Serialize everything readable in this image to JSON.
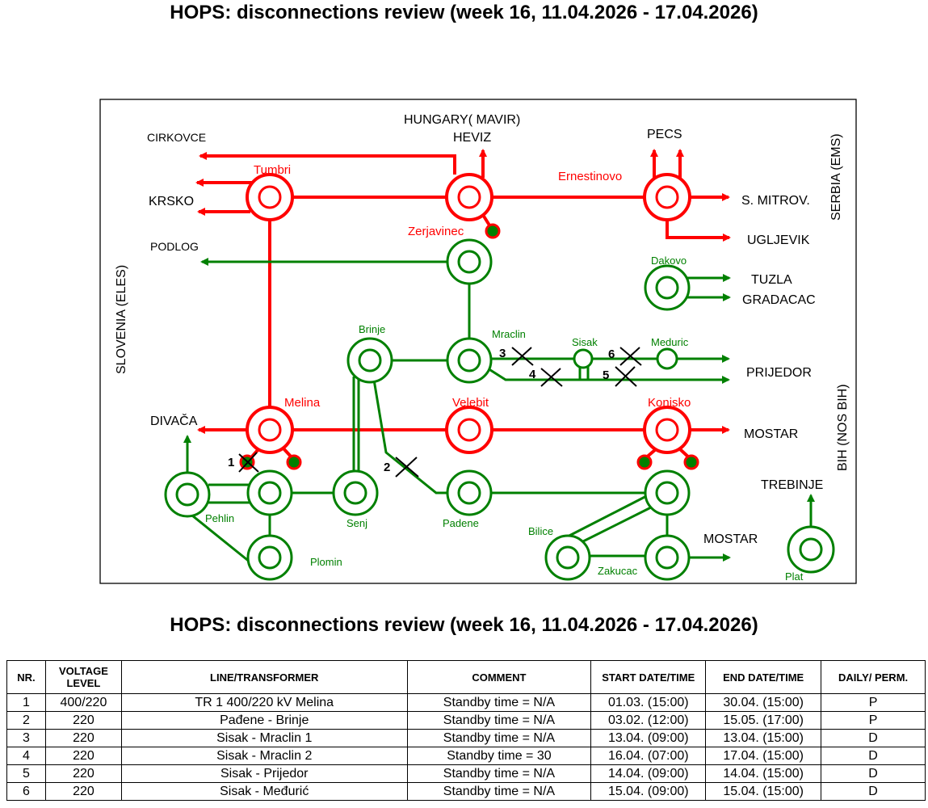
{
  "title": "HOPS: disconnections review (week 16, 11.04.2026 - 17.04.2026)",
  "colors": {
    "red": "#ff0000",
    "green": "#008000",
    "black": "#000000"
  },
  "diagram": {
    "border_labels": {
      "hungary": "HUNGARY( MAVIR)",
      "slovenia": "SLOVENIA (ELES)",
      "serbia": "SERBIA (EMS)",
      "bih": "BIH (NOS BIH)"
    },
    "external": {
      "cirkovce": "CIRKOVCE",
      "krsko": "KRSKO",
      "podlog": "PODLOG",
      "divaca": "DIVAČA",
      "heviz": "HEVIZ",
      "pecs": "PECS",
      "s_mitrov": "S. MITROV.",
      "ugljevik": "UGLJEVIK",
      "tuzla": "TUZLA",
      "gradacac": "GRADACAC",
      "prijedor": "PRIJEDOR",
      "mostar1": "MOSTAR",
      "mostar2": "MOSTAR",
      "trebinje": "TREBINJE"
    },
    "stations": {
      "tumbri": "Tumbri",
      "zerjavinec": "Zerjavinec",
      "ernestinovo": "Ernestinovo",
      "dakovo": "Dakovo",
      "brinje": "Brinje",
      "mraclin": "Mraclin",
      "sisak": "Sisak",
      "meduric": "Meduric",
      "melina": "Melina",
      "velebit": "Velebit",
      "konjsko": "Konjsko",
      "pehlin": "Pehlin",
      "senj": "Senj",
      "padene": "Padene",
      "bilice": "Bilice",
      "plomin": "Plomin",
      "zakucac": "Zakucac",
      "plat": "Plat"
    },
    "markers": [
      "1",
      "2",
      "3",
      "4",
      "5",
      "6"
    ]
  },
  "table": {
    "headers": [
      "NR.",
      "VOLTAGE LEVEL",
      "LINE/TRANSFORMER",
      "COMMENT",
      "START DATE/TIME",
      "END DATE/TIME",
      "DAILY/ PERM."
    ],
    "rows": [
      [
        "1",
        "400/220",
        "TR 1 400/220 kV Melina",
        "Standby time = N/A",
        "01.03. (15:00)",
        "30.04. (15:00)",
        "P"
      ],
      [
        "2",
        "220",
        "Pađene - Brinje",
        "Standby time = N/A",
        "03.02. (12:00)",
        "15.05. (17:00)",
        "P"
      ],
      [
        "3",
        "220",
        "Sisak - Mraclin 1",
        "Standby time = N/A",
        "13.04. (09:00)",
        "13.04. (15:00)",
        "D"
      ],
      [
        "4",
        "220",
        "Sisak - Mraclin 2",
        "Standby time = 30",
        "16.04. (07:00)",
        "17.04. (15:00)",
        "D"
      ],
      [
        "5",
        "220",
        "Sisak - Prijedor",
        "Standby time = N/A",
        "14.04. (09:00)",
        "14.04. (15:00)",
        "D"
      ],
      [
        "6",
        "220",
        "Sisak - Međurić",
        "Standby time = N/A",
        "15.04. (09:00)",
        "15.04. (15:00)",
        "D"
      ]
    ]
  }
}
